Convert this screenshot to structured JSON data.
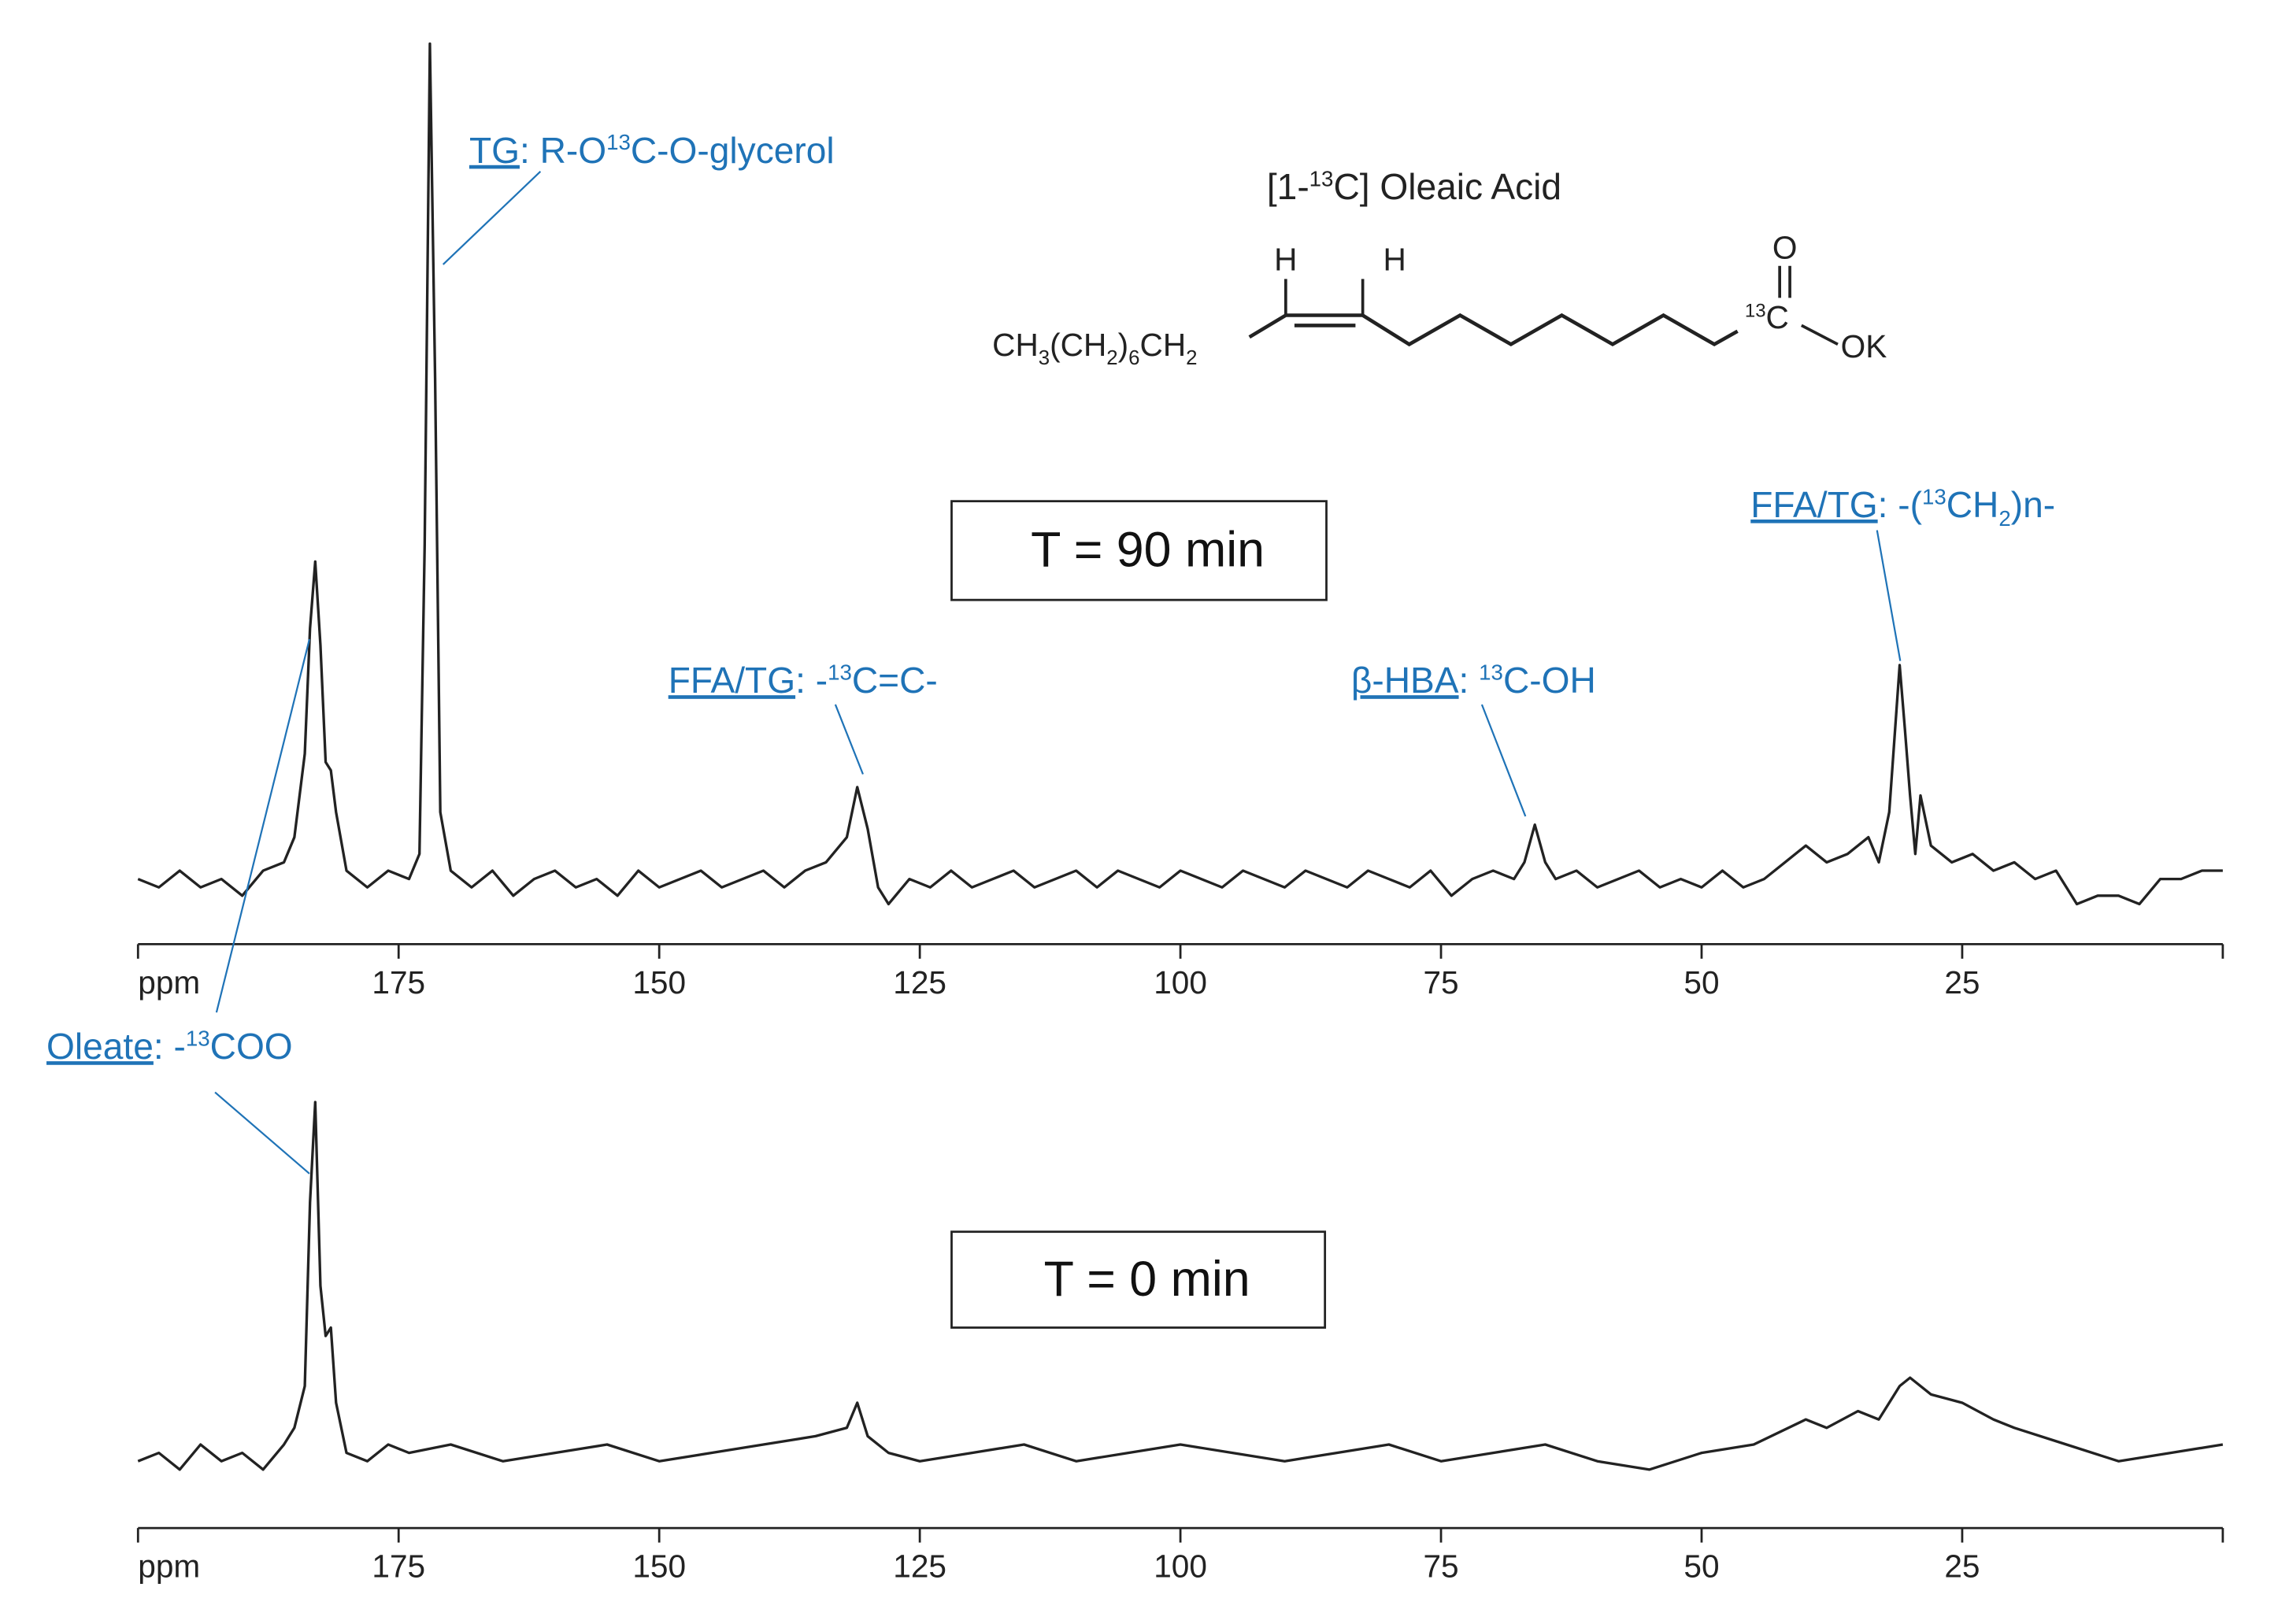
{
  "chart_data": [
    {
      "type": "line",
      "panel_label": "T = 90 min",
      "x": [
        200,
        198,
        196,
        194,
        192,
        190,
        188,
        186,
        185,
        184,
        183.5,
        183,
        182.5,
        182,
        181.5,
        181,
        180,
        178,
        176,
        174,
        173,
        172.5,
        172,
        171.5,
        171,
        170,
        168,
        166,
        164,
        162,
        160,
        158,
        156,
        154,
        152,
        150,
        148,
        146,
        144,
        142,
        140,
        138,
        136,
        134,
        132,
        131,
        130,
        129,
        128,
        126,
        124,
        122,
        120,
        118,
        116,
        114,
        112,
        110,
        108,
        106,
        104,
        102,
        100,
        98,
        96,
        94,
        92,
        90,
        88,
        86,
        84,
        82,
        80,
        78,
        76,
        74,
        72,
        70,
        68,
        67,
        66,
        65,
        64,
        62,
        60,
        58,
        56,
        54,
        52,
        50,
        48,
        46,
        44,
        42,
        40,
        38,
        36,
        34,
        33,
        32,
        31,
        30.5,
        30,
        29.5,
        29,
        28,
        27,
        26,
        24,
        22,
        20,
        18,
        16,
        14,
        12,
        10,
        8,
        6,
        4,
        2,
        0
      ],
      "values": [
        0,
        -1,
        1,
        -1,
        0,
        -2,
        1,
        2,
        5,
        15,
        30,
        38,
        28,
        14,
        13,
        8,
        1,
        -1,
        1,
        0,
        3,
        40,
        100,
        60,
        8,
        1,
        -1,
        1,
        -2,
        0,
        1,
        -1,
        0,
        -2,
        1,
        -1,
        0,
        1,
        -1,
        0,
        1,
        -1,
        1,
        2,
        5,
        11,
        6,
        -1,
        -3,
        0,
        -1,
        1,
        -1,
        0,
        1,
        -1,
        0,
        1,
        -1,
        1,
        0,
        -1,
        1,
        0,
        -1,
        1,
        0,
        -1,
        1,
        0,
        -1,
        1,
        0,
        -1,
        1,
        -2,
        0,
        1,
        0,
        2,
        6.5,
        2,
        0,
        1,
        -1,
        0,
        1,
        -1,
        0,
        -1,
        1,
        -1,
        0,
        2,
        4,
        2,
        3,
        5,
        2,
        8,
        25.6,
        18,
        10,
        3,
        10,
        4,
        3,
        2,
        3,
        1,
        2,
        0,
        1,
        -3,
        -2,
        -2,
        -3,
        0,
        0,
        1,
        1
      ],
      "color": "#222222",
      "xlim": [
        200,
        0
      ],
      "ylim": [
        -7.8,
        100
      ],
      "xticks": [
        {
          "value": 200,
          "label": "ppm"
        },
        175,
        150,
        125,
        100,
        75,
        50,
        25
      ],
      "annotations": [
        {
          "link": "TG",
          "parts": [
            {
              "text": ": R-O"
            },
            {
              "text": "13",
              "shift": "sup"
            },
            {
              "text": "C-O-glycerol"
            }
          ]
        },
        {
          "link": "FFA/TG",
          "parts": [
            {
              "text": ": -"
            },
            {
              "text": "13",
              "shift": "sup"
            },
            {
              "text": "C=C-"
            }
          ]
        },
        {
          "link": "β-HBA",
          "parts": [
            {
              "text": ": "
            },
            {
              "text": "13",
              "shift": "sup"
            },
            {
              "text": "C-OH"
            }
          ]
        },
        {
          "link": "FFA/TG",
          "parts": [
            {
              "text": ": -("
            },
            {
              "text": "13",
              "shift": "sup"
            },
            {
              "text": "CH"
            },
            {
              "text": "2",
              "shift": "sub"
            },
            {
              "text": ")n-"
            }
          ]
        }
      ]
    },
    {
      "type": "line",
      "panel_label": "T = 0 min",
      "x": [
        200,
        198,
        196,
        194,
        192,
        190,
        188,
        186,
        185,
        184,
        183.5,
        183,
        182.5,
        182,
        181.5,
        181,
        180,
        178,
        176,
        174,
        170,
        165,
        160,
        155,
        150,
        145,
        140,
        135,
        132,
        131,
        130,
        128,
        125,
        120,
        115,
        110,
        105,
        100,
        95,
        90,
        85,
        80,
        75,
        70,
        65,
        60,
        55,
        50,
        45,
        40,
        38,
        35,
        33,
        31,
        30,
        28,
        25,
        22,
        20,
        15,
        10,
        5,
        0
      ],
      "values": [
        -1,
        0,
        -2,
        1,
        -1,
        0,
        -2,
        1,
        3,
        8,
        30,
        42,
        20,
        14,
        15,
        6,
        0,
        -1,
        1,
        0,
        1,
        -1,
        0,
        1,
        -1,
        0,
        1,
        2,
        3,
        6,
        2,
        0,
        -1,
        0,
        1,
        -1,
        0,
        1,
        0,
        -1,
        0,
        1,
        -1,
        0,
        1,
        -1,
        -2,
        0,
        1,
        4,
        3,
        5,
        4,
        8,
        9,
        7,
        6,
        4,
        3,
        1,
        -1,
        0,
        1
      ],
      "color": "#222222",
      "xlim": [
        200,
        0
      ],
      "ylim": [
        -9,
        99
      ],
      "xticks": [
        {
          "value": 200,
          "label": "ppm"
        },
        175,
        150,
        125,
        100,
        75,
        50,
        25
      ],
      "annotations": [
        {
          "link": "Oleate",
          "parts": [
            {
              "text": ": -"
            },
            {
              "text": "13",
              "shift": "sup"
            },
            {
              "text": "COO"
            }
          ]
        }
      ]
    }
  ],
  "structure": {
    "name": [
      "[1-",
      "13",
      "C] Oleaic Acid"
    ],
    "chain": [
      "CH",
      "3",
      "(CH",
      "2",
      ")",
      "6",
      "CH",
      "2"
    ],
    "h1": "H",
    "h2": "H",
    "o": "O",
    "isotope": "13",
    "c": "C",
    "ok": "OK"
  }
}
